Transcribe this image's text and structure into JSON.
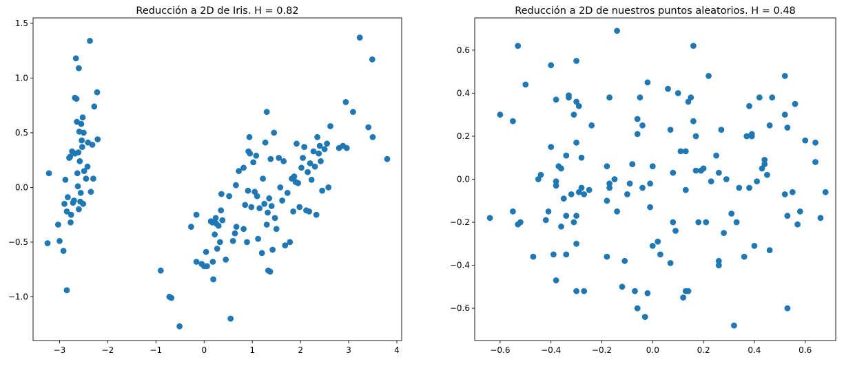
{
  "chart_data": [
    {
      "type": "scatter",
      "title": "Reducción a 2D de Iris. H = 0.82",
      "xlabel": "",
      "ylabel": "",
      "xlim": [
        -3.55,
        4.1
      ],
      "ylim": [
        -1.4,
        1.55
      ],
      "xticks": [
        -3,
        -2,
        -1,
        0,
        1,
        2,
        3,
        4
      ],
      "yticks": [
        -1.0,
        -0.5,
        0.0,
        0.5,
        1.0,
        1.5
      ],
      "xtick_labels": [
        "−3",
        "−2",
        "−1",
        "0",
        "1",
        "2",
        "3",
        "4"
      ],
      "ytick_labels": [
        "−1.0",
        "−0.5",
        "0.0",
        "0.5",
        "1.0",
        "1.5"
      ],
      "grid": false,
      "marker_color": "#1f77b4",
      "points": [
        [
          -3.22,
          0.13
        ],
        [
          -3.25,
          -0.51
        ],
        [
          -3.03,
          -0.34
        ],
        [
          -3.0,
          -0.49
        ],
        [
          -2.92,
          -0.58
        ],
        [
          -2.9,
          -0.15
        ],
        [
          -2.88,
          0.07
        ],
        [
          -2.85,
          -0.94
        ],
        [
          -2.85,
          -0.22
        ],
        [
          -2.83,
          -0.09
        ],
        [
          -2.8,
          0.27
        ],
        [
          -2.78,
          0.28
        ],
        [
          -2.77,
          -0.32
        ],
        [
          -2.76,
          -0.25
        ],
        [
          -2.74,
          0.33
        ],
        [
          -2.72,
          -0.14
        ],
        [
          -2.7,
          -0.12
        ],
        [
          -2.68,
          0.31
        ],
        [
          -2.68,
          0.82
        ],
        [
          -2.66,
          1.18
        ],
        [
          -2.65,
          0.81
        ],
        [
          -2.64,
          0.6
        ],
        [
          -2.63,
          0.13
        ],
        [
          -2.62,
          0.01
        ],
        [
          -2.61,
          0.32
        ],
        [
          -2.6,
          1.09
        ],
        [
          -2.6,
          -0.2
        ],
        [
          -2.59,
          0.51
        ],
        [
          -2.58,
          0.24
        ],
        [
          -2.57,
          -0.13
        ],
        [
          -2.56,
          -0.05
        ],
        [
          -2.55,
          0.58
        ],
        [
          -2.54,
          0.43
        ],
        [
          -2.53,
          0.37
        ],
        [
          -2.52,
          0.64
        ],
        [
          -2.51,
          -0.15
        ],
        [
          -2.5,
          0.5
        ],
        [
          -2.49,
          0.15
        ],
        [
          -2.45,
          0.08
        ],
        [
          -2.42,
          0.19
        ],
        [
          -2.41,
          0.41
        ],
        [
          -2.37,
          1.34
        ],
        [
          -2.35,
          -0.04
        ],
        [
          -2.32,
          0.39
        ],
        [
          -2.3,
          0.08
        ],
        [
          -2.28,
          0.74
        ],
        [
          -2.22,
          0.87
        ],
        [
          -2.21,
          0.44
        ],
        [
          -0.9,
          -0.76
        ],
        [
          -0.72,
          -1.0
        ],
        [
          -0.68,
          -1.01
        ],
        [
          -0.51,
          -1.27
        ],
        [
          -0.27,
          -0.36
        ],
        [
          -0.16,
          -0.68
        ],
        [
          -0.16,
          -0.25
        ],
        [
          -0.05,
          -0.7
        ],
        [
          0.0,
          -0.72
        ],
        [
          0.04,
          -0.59
        ],
        [
          0.06,
          -0.72
        ],
        [
          0.14,
          -0.31
        ],
        [
          0.17,
          -0.32
        ],
        [
          0.18,
          -0.68
        ],
        [
          0.19,
          -0.84
        ],
        [
          0.22,
          -0.43
        ],
        [
          0.24,
          -0.28
        ],
        [
          0.25,
          -0.33
        ],
        [
          0.27,
          -0.56
        ],
        [
          0.3,
          -0.35
        ],
        [
          0.33,
          -0.5
        ],
        [
          0.35,
          -0.21
        ],
        [
          0.36,
          -0.06
        ],
        [
          0.38,
          -0.3
        ],
        [
          0.45,
          -0.66
        ],
        [
          0.52,
          -0.08
        ],
        [
          0.55,
          -1.2
        ],
        [
          0.6,
          -0.49
        ],
        [
          0.64,
          -0.42
        ],
        [
          0.66,
          0.02
        ],
        [
          0.67,
          -0.36
        ],
        [
          0.72,
          0.15
        ],
        [
          0.82,
          -0.38
        ],
        [
          0.82,
          0.18
        ],
        [
          0.85,
          -0.16
        ],
        [
          0.89,
          -0.5
        ],
        [
          0.91,
          -0.03
        ],
        [
          0.92,
          0.33
        ],
        [
          0.94,
          0.46
        ],
        [
          0.95,
          0.31
        ],
        [
          0.98,
          -0.18
        ],
        [
          1.02,
          0.23
        ],
        [
          1.05,
          -0.04
        ],
        [
          1.08,
          0.29
        ],
        [
          1.1,
          -0.08
        ],
        [
          1.12,
          -0.47
        ],
        [
          1.15,
          -0.19
        ],
        [
          1.2,
          -0.6
        ],
        [
          1.22,
          0.08
        ],
        [
          1.25,
          -0.15
        ],
        [
          1.27,
          0.41
        ],
        [
          1.3,
          0.69
        ],
        [
          1.3,
          -0.34
        ],
        [
          1.32,
          -0.23
        ],
        [
          1.33,
          -0.76
        ],
        [
          1.35,
          -0.1
        ],
        [
          1.37,
          -0.77
        ],
        [
          1.38,
          0.26
        ],
        [
          1.4,
          -0.17
        ],
        [
          1.42,
          -0.57
        ],
        [
          1.45,
          0.5
        ],
        [
          1.47,
          -0.28
        ],
        [
          1.5,
          -0.38
        ],
        [
          1.55,
          0.27
        ],
        [
          1.58,
          0.0
        ],
        [
          1.62,
          -0.12
        ],
        [
          1.65,
          0.24
        ],
        [
          1.68,
          -0.53
        ],
        [
          1.73,
          -0.05
        ],
        [
          1.78,
          -0.5
        ],
        [
          1.82,
          0.08
        ],
        [
          1.85,
          -0.22
        ],
        [
          1.87,
          0.1
        ],
        [
          1.9,
          0.05
        ],
        [
          1.92,
          0.4
        ],
        [
          1.95,
          0.04
        ],
        [
          1.98,
          -0.18
        ],
        [
          2.02,
          0.18
        ],
        [
          2.05,
          0.27
        ],
        [
          2.08,
          0.37
        ],
        [
          2.12,
          -0.21
        ],
        [
          2.15,
          0.14
        ],
        [
          2.18,
          -0.22
        ],
        [
          2.2,
          0.22
        ],
        [
          2.23,
          0.07
        ],
        [
          2.27,
          0.33
        ],
        [
          2.3,
          0.19
        ],
        [
          2.33,
          -0.25
        ],
        [
          2.35,
          0.46
        ],
        [
          2.38,
          0.31
        ],
        [
          2.4,
          0.38
        ],
        [
          2.42,
          0.24
        ],
        [
          2.45,
          -0.03
        ],
        [
          2.5,
          0.35
        ],
        [
          2.55,
          0.4
        ],
        [
          2.58,
          0.0
        ],
        [
          2.62,
          0.56
        ],
        [
          2.8,
          0.36
        ],
        [
          2.88,
          0.38
        ],
        [
          2.94,
          0.78
        ],
        [
          2.96,
          0.36
        ],
        [
          3.09,
          0.69
        ],
        [
          3.23,
          1.37
        ],
        [
          3.41,
          0.55
        ],
        [
          3.49,
          1.17
        ],
        [
          3.5,
          0.46
        ],
        [
          3.8,
          0.26
        ]
      ]
    },
    {
      "type": "scatter",
      "title": "Reducción a 2D de nuestros puntos aleatorios. H = 0.48",
      "xlabel": "",
      "ylabel": "",
      "xlim": [
        -0.7,
        0.72
      ],
      "ylim": [
        -0.75,
        0.75
      ],
      "xticks": [
        -0.6,
        -0.4,
        -0.2,
        0.0,
        0.2,
        0.4,
        0.6
      ],
      "yticks": [
        -0.6,
        -0.4,
        -0.2,
        0.0,
        0.2,
        0.4,
        0.6
      ],
      "xtick_labels": [
        "−0.6",
        "−0.4",
        "−0.2",
        "0.0",
        "0.2",
        "0.4",
        "0.6"
      ],
      "ytick_labels": [
        "−0.6",
        "−0.4",
        "−0.2",
        "0.0",
        "0.2",
        "0.4",
        "0.6"
      ],
      "grid": false,
      "marker_color": "#1f77b4",
      "points": [
        [
          -0.64,
          -0.18
        ],
        [
          -0.6,
          0.3
        ],
        [
          -0.55,
          0.27
        ],
        [
          -0.55,
          -0.15
        ],
        [
          -0.53,
          -0.21
        ],
        [
          -0.52,
          -0.2
        ],
        [
          -0.53,
          0.62
        ],
        [
          -0.5,
          0.44
        ],
        [
          -0.47,
          -0.36
        ],
        [
          -0.45,
          0.0
        ],
        [
          -0.44,
          0.02
        ],
        [
          -0.42,
          -0.19
        ],
        [
          -0.41,
          -0.15
        ],
        [
          -0.4,
          0.15
        ],
        [
          -0.4,
          0.53
        ],
        [
          -0.39,
          -0.35
        ],
        [
          -0.38,
          -0.03
        ],
        [
          -0.38,
          -0.01
        ],
        [
          -0.38,
          -0.47
        ],
        [
          -0.38,
          0.37
        ],
        [
          -0.37,
          0.06
        ],
        [
          -0.36,
          0.05
        ],
        [
          -0.36,
          -0.22
        ],
        [
          -0.35,
          -0.09
        ],
        [
          -0.34,
          0.11
        ],
        [
          -0.34,
          -0.17
        ],
        [
          -0.34,
          -0.35
        ],
        [
          -0.33,
          0.38
        ],
        [
          -0.33,
          0.39
        ],
        [
          -0.32,
          -0.07
        ],
        [
          -0.31,
          -0.2
        ],
        [
          -0.31,
          0.3
        ],
        [
          -0.3,
          -0.17
        ],
        [
          -0.3,
          0.17
        ],
        [
          -0.3,
          0.36
        ],
        [
          -0.3,
          -0.52
        ],
        [
          -0.3,
          0.55
        ],
        [
          -0.3,
          -0.3
        ],
        [
          -0.29,
          -0.06
        ],
        [
          -0.29,
          0.34
        ],
        [
          -0.28,
          -0.04
        ],
        [
          -0.28,
          0.1
        ],
        [
          -0.27,
          -0.52
        ],
        [
          -0.27,
          -0.07
        ],
        [
          -0.25,
          -0.05
        ],
        [
          -0.24,
          0.25
        ],
        [
          -0.18,
          -0.1
        ],
        [
          -0.18,
          0.06
        ],
        [
          -0.18,
          -0.36
        ],
        [
          -0.17,
          -0.02
        ],
        [
          -0.17,
          -0.04
        ],
        [
          -0.17,
          0.38
        ],
        [
          -0.15,
          0.0
        ],
        [
          -0.14,
          -0.15
        ],
        [
          -0.14,
          0.69
        ],
        [
          -0.12,
          -0.5
        ],
        [
          -0.11,
          -0.38
        ],
        [
          -0.1,
          -0.07
        ],
        [
          -0.09,
          -0.02
        ],
        [
          -0.08,
          0.07
        ],
        [
          -0.07,
          -0.52
        ],
        [
          -0.06,
          -0.6
        ],
        [
          -0.06,
          0.21
        ],
        [
          -0.06,
          0.28
        ],
        [
          -0.05,
          0.38
        ],
        [
          -0.04,
          0.25
        ],
        [
          -0.04,
          -0.04
        ],
        [
          -0.03,
          -0.64
        ],
        [
          -0.02,
          0.45
        ],
        [
          -0.02,
          -0.53
        ],
        [
          -0.01,
          -0.13
        ],
        [
          -0.01,
          -0.02
        ],
        [
          0.0,
          -0.31
        ],
        [
          0.0,
          0.06
        ],
        [
          0.02,
          -0.29
        ],
        [
          0.03,
          -0.35
        ],
        [
          0.06,
          0.42
        ],
        [
          0.07,
          0.23
        ],
        [
          0.07,
          -0.39
        ],
        [
          0.08,
          0.03
        ],
        [
          0.08,
          -0.2
        ],
        [
          0.09,
          -0.24
        ],
        [
          0.1,
          0.4
        ],
        [
          0.11,
          0.13
        ],
        [
          0.12,
          -0.55
        ],
        [
          0.13,
          -0.52
        ],
        [
          0.13,
          -0.05
        ],
        [
          0.13,
          0.13
        ],
        [
          0.14,
          -0.52
        ],
        [
          0.14,
          0.36
        ],
        [
          0.15,
          0.38
        ],
        [
          0.16,
          0.62
        ],
        [
          0.16,
          0.27
        ],
        [
          0.17,
          0.2
        ],
        [
          0.17,
          0.04
        ],
        [
          0.18,
          -0.2
        ],
        [
          0.19,
          0.04
        ],
        [
          0.2,
          0.05
        ],
        [
          0.21,
          -0.2
        ],
        [
          0.22,
          0.48
        ],
        [
          0.23,
          -0.01
        ],
        [
          0.25,
          0.11
        ],
        [
          0.26,
          0.03
        ],
        [
          0.26,
          -0.38
        ],
        [
          0.26,
          -0.4
        ],
        [
          0.27,
          0.23
        ],
        [
          0.28,
          -0.25
        ],
        [
          0.29,
          0.0
        ],
        [
          0.31,
          -0.16
        ],
        [
          0.32,
          -0.68
        ],
        [
          0.33,
          -0.2
        ],
        [
          0.34,
          -0.04
        ],
        [
          0.36,
          -0.36
        ],
        [
          0.37,
          0.2
        ],
        [
          0.38,
          0.34
        ],
        [
          0.38,
          -0.04
        ],
        [
          0.39,
          0.21
        ],
        [
          0.39,
          0.2
        ],
        [
          0.4,
          -0.31
        ],
        [
          0.41,
          -0.01
        ],
        [
          0.42,
          0.38
        ],
        [
          0.43,
          0.05
        ],
        [
          0.44,
          0.07
        ],
        [
          0.44,
          0.09
        ],
        [
          0.45,
          0.02
        ],
        [
          0.46,
          -0.33
        ],
        [
          0.46,
          0.25
        ],
        [
          0.47,
          0.38
        ],
        [
          0.52,
          0.3
        ],
        [
          0.52,
          -0.07
        ],
        [
          0.52,
          0.48
        ],
        [
          0.53,
          0.24
        ],
        [
          0.53,
          -0.17
        ],
        [
          0.53,
          -0.6
        ],
        [
          0.55,
          -0.06
        ],
        [
          0.56,
          0.35
        ],
        [
          0.57,
          -0.21
        ],
        [
          0.58,
          -0.15
        ],
        [
          0.6,
          0.18
        ],
        [
          0.64,
          0.17
        ],
        [
          0.64,
          0.08
        ],
        [
          0.66,
          -0.18
        ],
        [
          0.68,
          -0.06
        ]
      ]
    }
  ]
}
